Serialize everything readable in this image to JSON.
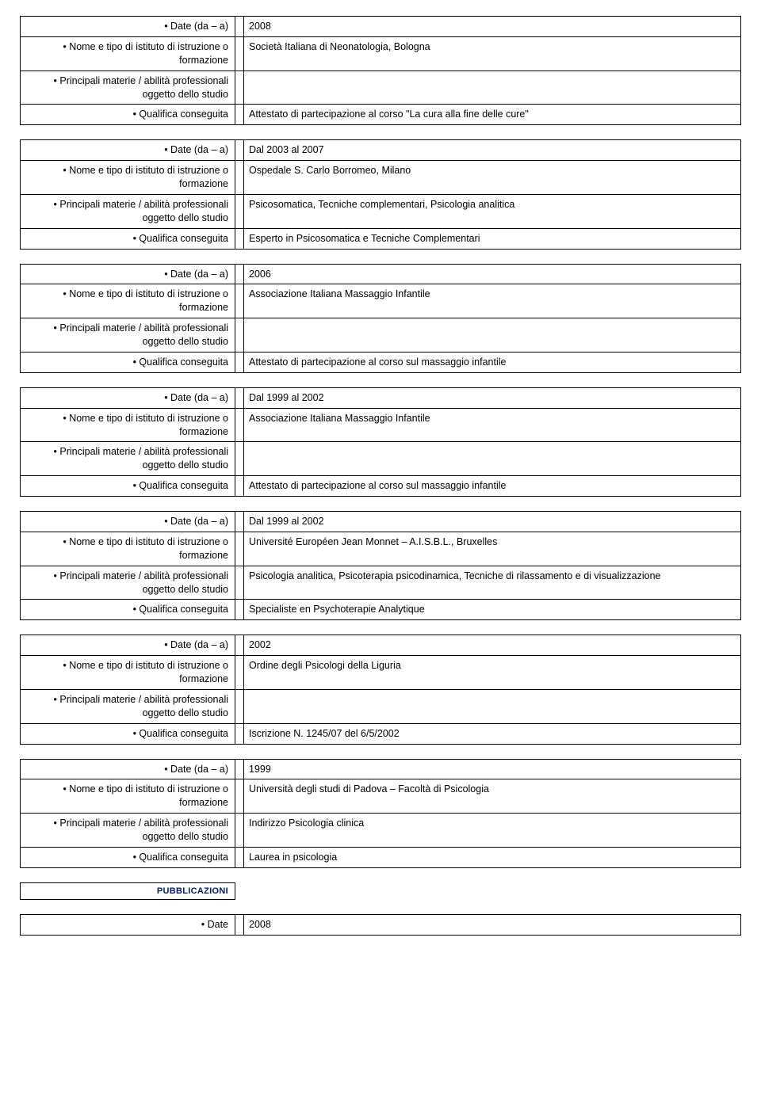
{
  "labels": {
    "date": "• Date (da – a)",
    "institute": "• Nome e tipo di istituto di istruzione o formazione",
    "subjects": "• Principali materie / abilità professionali oggetto dello studio",
    "qualification": "• Qualifica conseguita",
    "dateSimple": "• Date"
  },
  "blocks": [
    {
      "date": "2008",
      "institute": "Società Italiana di Neonatologia, Bologna",
      "subjects": "",
      "qualification": "Attestato di partecipazione al corso \"La cura alla fine delle cure\""
    },
    {
      "date": "Dal 2003 al 2007",
      "institute": "Ospedale S. Carlo Borromeo, Milano",
      "subjects": "Psicosomatica, Tecniche complementari, Psicologia analitica",
      "qualification": "Esperto in Psicosomatica e Tecniche Complementari"
    },
    {
      "date": "2006",
      "institute": "Associazione Italiana Massaggio Infantile",
      "subjects": "",
      "qualification": "Attestato di partecipazione al corso sul massaggio infantile"
    },
    {
      "date": "Dal 1999 al 2002",
      "institute": "Associazione Italiana Massaggio Infantile",
      "subjects": "",
      "qualification": "Attestato di partecipazione al corso sul massaggio infantile"
    },
    {
      "date": "Dal 1999 al 2002",
      "institute": "Université Européen Jean Monnet – A.I.S.B.L., Bruxelles",
      "subjects": "Psicologia analitica, Psicoterapia psicodinamica, Tecniche di rilassamento e di visualizzazione",
      "qualification": "Specialiste en Psychoterapie Analytique"
    },
    {
      "date": "2002",
      "institute": "Ordine degli Psicologi della Liguria",
      "subjects": "",
      "qualification": "Iscrizione N. 1245/07 del 6/5/2002"
    },
    {
      "date": "1999",
      "institute": "Università degli studi di Padova – Facoltà di Psicologia",
      "subjects": "Indirizzo Psicologia clinica",
      "qualification": "Laurea in psicologia"
    }
  ],
  "publications": {
    "heading": "PUBBLICAZIONI"
  },
  "lastBlock": {
    "date": "2008"
  },
  "colors": {
    "headingColor": "#002060",
    "border": "#000000",
    "background": "#ffffff",
    "text": "#000000"
  },
  "layout": {
    "fontFamily": "Arial",
    "fontSize": 12.5,
    "leftColWidth": 258,
    "gapWidth": 10,
    "pageWidth": 960,
    "pageHeight": 1400
  }
}
